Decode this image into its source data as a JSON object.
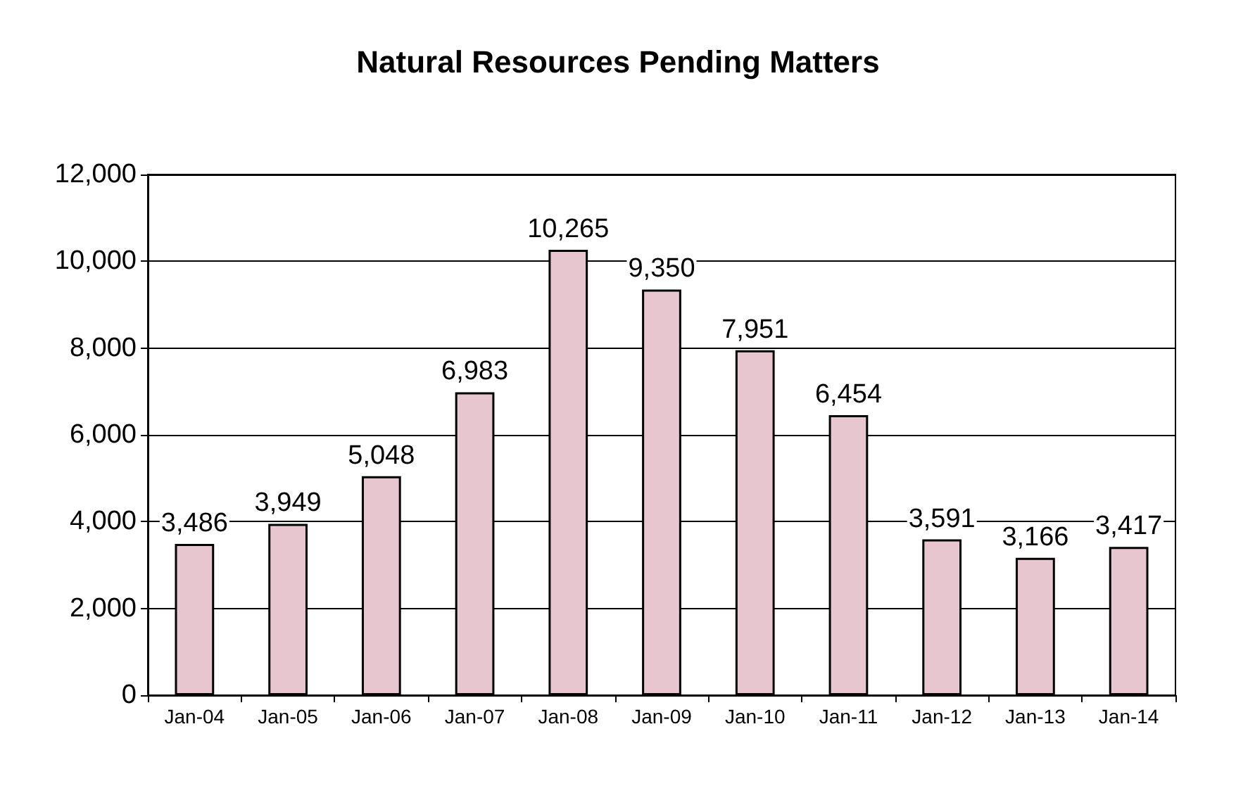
{
  "chart_data": {
    "type": "bar",
    "title": "Natural Resources Pending Matters",
    "categories": [
      "Jan-04",
      "Jan-05",
      "Jan-06",
      "Jan-07",
      "Jan-08",
      "Jan-09",
      "Jan-10",
      "Jan-11",
      "Jan-12",
      "Jan-13",
      "Jan-14"
    ],
    "values": [
      3486,
      3949,
      5048,
      6983,
      10265,
      9350,
      7951,
      6454,
      3591,
      3166,
      3417
    ],
    "value_labels": [
      "3,486",
      "3,949",
      "5,048",
      "6,983",
      "10,265",
      "9,350",
      "7,951",
      "6,454",
      "3,591",
      "3,166",
      "3,417"
    ],
    "color": "#e8c6cf",
    "ylim": [
      0,
      12000
    ],
    "yticks": [
      {
        "value": 0,
        "label": "0"
      },
      {
        "value": 2000,
        "label": "2,000"
      },
      {
        "value": 4000,
        "label": "4,000"
      },
      {
        "value": 6000,
        "label": "6,000"
      },
      {
        "value": 8000,
        "label": "8,000"
      },
      {
        "value": 10000,
        "label": "10,000"
      },
      {
        "value": 12000,
        "label": "12,000"
      }
    ],
    "grid": "y"
  }
}
